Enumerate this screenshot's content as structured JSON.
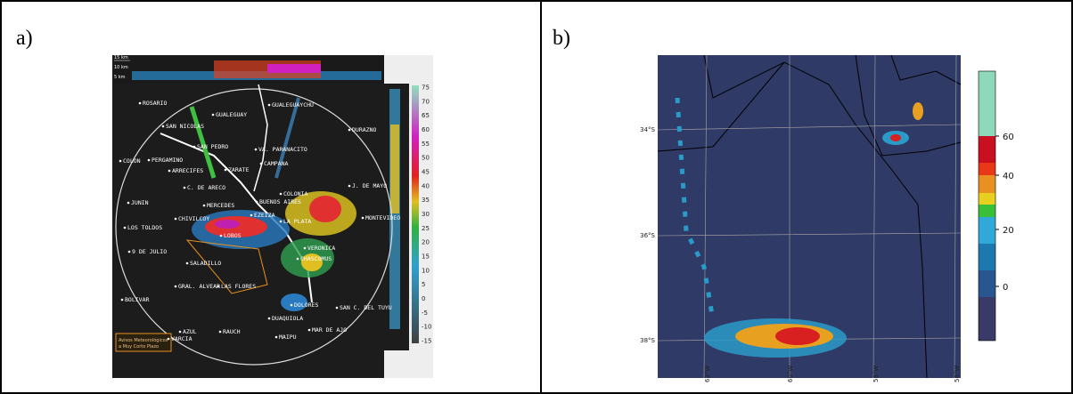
{
  "panels": [
    {
      "label": "a)",
      "height_labels": [
        "15 km",
        "10 km",
        "5 km"
      ],
      "cities": [
        "ROSARIO",
        "GUALEGUAY",
        "GUALEGUAYCHU",
        "SAN NICOLAS",
        "SAN PEDRO",
        "DURAZNO",
        "VA. PARANACITO",
        "COLON",
        "PERGAMINO",
        "ARRECIFES",
        "ZARATE",
        "CAMPANA",
        "C. DE ARECO",
        "J. DE MAYO",
        "COLONIA",
        "JUNIN",
        "CHIVILCOY",
        "MERCEDES",
        "BUENOS AIRES",
        "EZEIZA",
        "LA PLATA",
        "MONTEVIDEO",
        "LOS TOLDOS",
        "LOBOS",
        "9 DE JULIO",
        "SALADILLO",
        "VERONICA",
        "CHASCOMUS",
        "GRAL. ALVEAR",
        "LAS FLORES",
        "BOLIVAR",
        "DOLORES",
        "SAN C. DEL TUYU",
        "DUAQUIOLA",
        "AZUL",
        "RAUCH",
        "MAIPU",
        "MAR DE AJO",
        "VARCIA"
      ],
      "colorbar_ticks": [
        75,
        70,
        65,
        60,
        55,
        50,
        45,
        40,
        35,
        30,
        25,
        20,
        15,
        10,
        5,
        0,
        -5,
        -10,
        -15
      ],
      "legend": [
        "Avisos Meteorológicos",
        "a Muy Corto Plazo"
      ]
    },
    {
      "label": "b)",
      "colorbar_ticks": [
        60,
        40,
        20,
        0
      ],
      "lat_labels": [
        "34°S",
        "36°S",
        "38°S"
      ],
      "lon_labels": [
        "62°W",
        "60°W",
        "58°W",
        "56°W"
      ]
    }
  ]
}
